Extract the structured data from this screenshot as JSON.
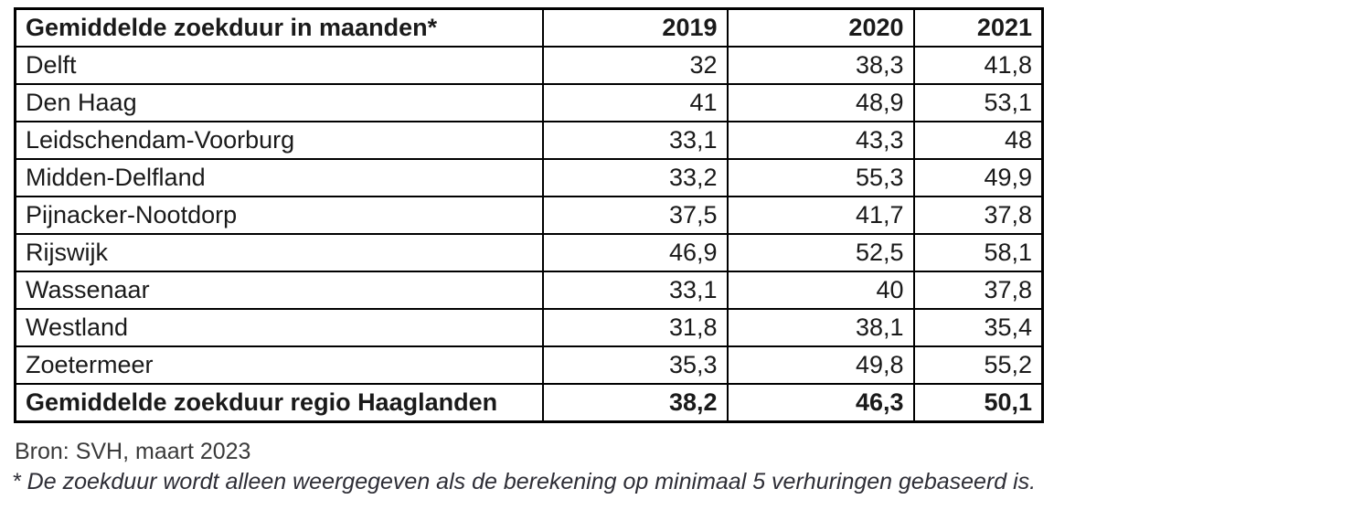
{
  "chart_data": {
    "type": "table",
    "title": "Gemiddelde zoekduur in maanden*",
    "columns": [
      "2019",
      "2020",
      "2021"
    ],
    "rows": [
      {
        "name": "Delft",
        "values": [
          "32",
          "38,3",
          "41,8"
        ],
        "bold": false
      },
      {
        "name": "Den Haag",
        "values": [
          "41",
          "48,9",
          "53,1"
        ],
        "bold": false
      },
      {
        "name": "Leidschendam-Voorburg",
        "values": [
          "33,1",
          "43,3",
          "48"
        ],
        "bold": false
      },
      {
        "name": "Midden-Delfland",
        "values": [
          "33,2",
          "55,3",
          "49,9"
        ],
        "bold": false
      },
      {
        "name": "Pijnacker-Nootdorp",
        "values": [
          "37,5",
          "41,7",
          "37,8"
        ],
        "bold": false
      },
      {
        "name": "Rijswijk",
        "values": [
          "46,9",
          "52,5",
          "58,1"
        ],
        "bold": false
      },
      {
        "name": "Wassenaar",
        "values": [
          "33,1",
          "40",
          "37,8"
        ],
        "bold": false
      },
      {
        "name": "Westland",
        "values": [
          "31,8",
          "38,1",
          "35,4"
        ],
        "bold": false
      },
      {
        "name": "Zoetermeer",
        "values": [
          "35,3",
          "49,8",
          "55,2"
        ],
        "bold": false
      },
      {
        "name": "Gemiddelde zoekduur regio Haaglanden",
        "values": [
          "38,2",
          "46,3",
          "50,1"
        ],
        "bold": true
      }
    ]
  },
  "footer": {
    "source": "Bron: SVH, maart 2023",
    "footnote": "* De zoekduur wordt alleen weergegeven als de berekening op minimaal 5 verhuringen gebaseerd is."
  },
  "colors": {
    "border": "#000000",
    "table_text": "#1a1a1a",
    "footer_text": "#3a3a3a",
    "background": "#ffffff"
  }
}
